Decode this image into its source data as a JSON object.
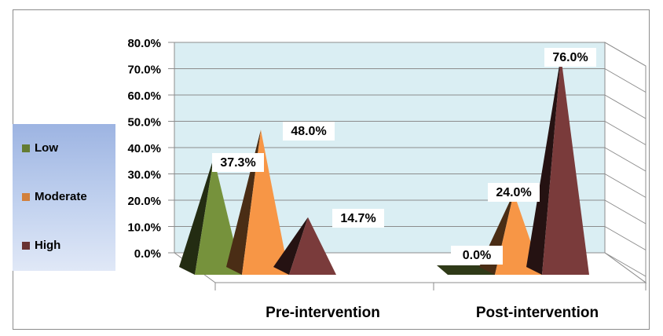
{
  "chart_data": {
    "type": "bar",
    "style": "3d-pyramid",
    "categories": [
      "Pre-intervention",
      "Post-intervention"
    ],
    "series": [
      {
        "name": "Low",
        "values": [
          37.3,
          0.0
        ],
        "color": "#76923c"
      },
      {
        "name": "Moderate",
        "values": [
          48.0,
          24.0
        ],
        "color": "#f79646"
      },
      {
        "name": "High",
        "values": [
          14.7,
          76.0
        ],
        "color": "#7a3b3b"
      }
    ],
    "data_labels": [
      [
        "37.3%",
        "0.0%"
      ],
      [
        "48.0%",
        "24.0%"
      ],
      [
        "14.7%",
        "76.0%"
      ]
    ],
    "y_ticks": [
      "0.0%",
      "10.0%",
      "20.0%",
      "30.0%",
      "40.0%",
      "50.0%",
      "60.0%",
      "70.0%",
      "80.0%"
    ],
    "ylim": [
      0,
      80
    ],
    "grid": true,
    "legend_position": "left",
    "wall_color": "#daeef3"
  }
}
